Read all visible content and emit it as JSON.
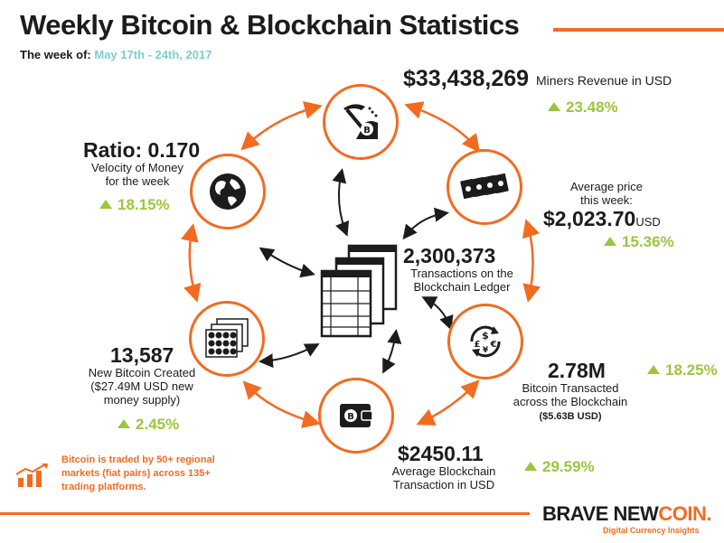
{
  "header": {
    "title": "Weekly Bitcoin & Blockchain Statistics",
    "week_label": "The week of:",
    "week_dates": "May 17th - 24th, 2017"
  },
  "stats": {
    "miners": {
      "value": "$33,438,269",
      "label": "Miners Revenue in USD",
      "change": "23.48%"
    },
    "price": {
      "label_line1": "Average price",
      "label_line2": "this week:",
      "value": "$2,023.70",
      "unit": "USD",
      "change": "15.36%"
    },
    "transactions": {
      "value": "2,300,373",
      "label_line1": "Transactions on the",
      "label_line2": "Blockchain Ledger"
    },
    "transacted": {
      "value": "2.78M",
      "change": "18.25%",
      "label_line1": "Bitcoin Transacted",
      "label_line2": "across the Blockchain",
      "sub": "($5.63B USD)"
    },
    "avg_tx": {
      "value": "$2450.11",
      "label_line1": "Average Blockchain",
      "label_line2": "Transaction in USD",
      "change": "29.59%"
    },
    "new_btc": {
      "value": "13,587",
      "label_line1": "New Bitcoin Created",
      "label_line2": "($27.49M USD new",
      "label_line3": "money supply)",
      "change": "2.45%"
    },
    "velocity": {
      "value": "Ratio: 0.170",
      "label_line1": "Velocity of Money",
      "label_line2": "for the week",
      "change": "18.15%"
    }
  },
  "note": "Bitcoin is traded by 50+ regional markets (fiat pairs) across 135+ trading platforms.",
  "footer": {
    "logo_brave": "BRAVE NEW",
    "logo_coin": "COIN.",
    "tagline": "Digital Currency Insights"
  },
  "colors": {
    "accent": "#f26b21",
    "positive": "#9cc63c",
    "dates": "#7ccdcd",
    "text": "#1c1c1c"
  },
  "icons": [
    "pickaxe-bitcoin-icon",
    "banknotes-icon",
    "currency-exchange-icon",
    "bitcoin-wallet-icon",
    "coin-stack-icon",
    "globe-icon",
    "ledger-pages-icon",
    "bar-chart-trend-icon"
  ]
}
